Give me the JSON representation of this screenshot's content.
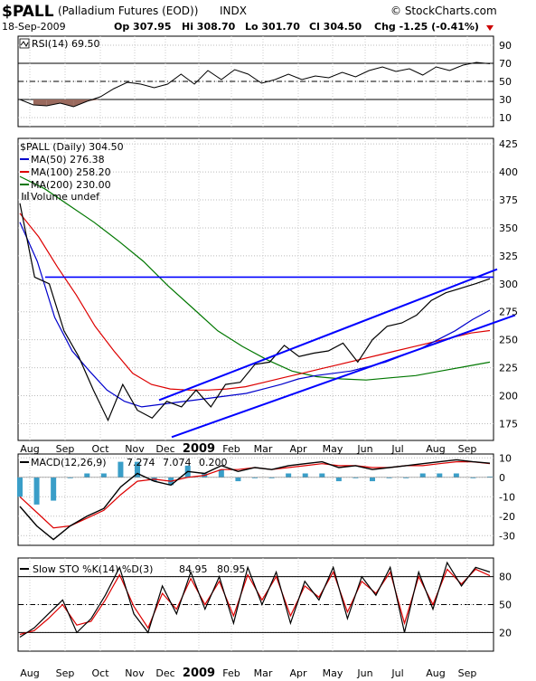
{
  "header": {
    "symbol": "$PALL",
    "name": "(Palladium Futures (EOD))",
    "exchange": "INDX",
    "source": "© StockCharts.com",
    "date": "18-Sep-2009",
    "op": "Op 307.95",
    "hi": "Hi 308.70",
    "lo": "Lo 301.70",
    "cl": "Cl 304.50",
    "chg": "Chg -1.25 (-0.41%)"
  },
  "chart_data": [
    {
      "type": "line",
      "panel": "RSI",
      "legend": "RSI(14) 69.50",
      "y_ticks": [
        "90",
        "70",
        "50",
        "30",
        "10"
      ],
      "ylim": [
        0,
        100
      ],
      "reference_lines": [
        70,
        50,
        30
      ],
      "series": [
        {
          "name": "RSI(14)",
          "values": [
            30,
            24,
            23,
            26,
            22,
            28,
            33,
            42,
            49,
            47,
            43,
            47,
            58,
            47,
            62,
            52,
            63,
            58,
            48,
            52,
            58,
            52,
            56,
            54,
            60,
            55,
            62,
            66,
            61,
            64,
            57,
            66,
            62,
            68,
            71,
            69.5
          ]
        }
      ]
    },
    {
      "type": "line",
      "panel": "price",
      "legend": {
        "title": "$PALL (Daily) 304.50",
        "ma50": "MA(50) 276.38",
        "ma100": "MA(100) 258.20",
        "ma200": "MA(200) 230.00",
        "volume": "Volume undef"
      },
      "y_ticks": [
        "425",
        "400",
        "375",
        "350",
        "325",
        "300",
        "275",
        "250",
        "225",
        "200",
        "175"
      ],
      "ylim": [
        160,
        430
      ],
      "x_ticks": [
        "Aug",
        "Sep",
        "Oct",
        "Nov",
        "Dec",
        "2009",
        "Feb",
        "Mar",
        "Apr",
        "May",
        "Jun",
        "Jul",
        "Aug",
        "Sep"
      ],
      "series": [
        {
          "name": "$PALL",
          "values": [
            372,
            306,
            300,
            258,
            235,
            205,
            178,
            210,
            187,
            180,
            195,
            190,
            205,
            190,
            210,
            212,
            228,
            230,
            245,
            235,
            238,
            240,
            247,
            230,
            250,
            262,
            265,
            272,
            285,
            292,
            296,
            300,
            304.5
          ]
        },
        {
          "name": "MA(50)",
          "values": [
            355,
            320,
            270,
            240,
            222,
            205,
            195,
            190,
            192,
            194,
            196,
            198,
            200,
            202,
            206,
            210,
            215,
            218,
            220,
            222,
            226,
            230,
            236,
            242,
            250,
            258,
            268,
            276.38
          ]
        },
        {
          "name": "MA(100)",
          "values": [
            363,
            342,
            315,
            290,
            262,
            240,
            220,
            210,
            206,
            205,
            205,
            206,
            208,
            212,
            216,
            220,
            224,
            228,
            232,
            236,
            240,
            244,
            248,
            252,
            256,
            258.2
          ]
        },
        {
          "name": "MA(200)",
          "values": [
            396,
            385,
            370,
            355,
            338,
            320,
            298,
            278,
            258,
            244,
            232,
            222,
            217,
            215,
            214,
            216,
            218,
            222,
            226,
            230
          ]
        }
      ]
    },
    {
      "type": "line",
      "panel": "MACD",
      "legend": {
        "label": "MACD(12,26,9)",
        "macd": "7.274",
        "signal": "7.074",
        "hist": "0.200"
      },
      "y_ticks": [
        "10",
        "0",
        "-10",
        "-20",
        "-30"
      ],
      "ylim": [
        -35,
        12
      ],
      "series": [
        {
          "name": "MACD",
          "values": [
            -15,
            -25,
            -32,
            -25,
            -20,
            -16,
            -5,
            2,
            -2,
            -4,
            3,
            2,
            6,
            3,
            5,
            4,
            6,
            7,
            8,
            5,
            6,
            4,
            5,
            6,
            7,
            8,
            9,
            8,
            7.274
          ]
        },
        {
          "name": "Signal",
          "values": [
            -10,
            -18,
            -26,
            -25,
            -21,
            -17,
            -9,
            -2,
            -1,
            -2,
            0,
            1,
            4,
            4,
            5,
            4,
            5,
            6,
            7,
            6,
            6,
            5,
            5,
            6,
            6,
            7,
            8,
            8,
            7.074
          ]
        }
      ]
    },
    {
      "type": "line",
      "panel": "Slow STO",
      "legend": {
        "label": "Slow STO %K(14) %D(3)",
        "k": "84.95",
        "d": "80.95"
      },
      "y_ticks": [
        "80",
        "50",
        "20"
      ],
      "ylim": [
        0,
        100
      ],
      "reference_lines": [
        80,
        50,
        20
      ],
      "series": [
        {
          "name": "%K",
          "values": [
            15,
            25,
            40,
            55,
            20,
            35,
            60,
            90,
            40,
            20,
            70,
            40,
            85,
            45,
            80,
            30,
            90,
            50,
            85,
            30,
            75,
            55,
            90,
            35,
            80,
            60,
            90,
            20,
            85,
            45,
            95,
            70,
            90,
            85
          ]
        },
        {
          "name": "%D",
          "values": [
            18,
            22,
            35,
            50,
            28,
            32,
            55,
            82,
            48,
            25,
            62,
            45,
            78,
            50,
            75,
            38,
            82,
            55,
            80,
            38,
            70,
            58,
            85,
            42,
            75,
            62,
            85,
            30,
            80,
            50,
            88,
            72,
            88,
            80.95
          ]
        }
      ]
    }
  ],
  "colors": {
    "price": "#000000",
    "ma50": "#0000cc",
    "ma100": "#dd0000",
    "ma200": "#007700",
    "channel": "#0000ff",
    "rsi_fill": "#9a6a5e",
    "macd_hist": "#3a9ec8",
    "chg": "#cc0000"
  }
}
